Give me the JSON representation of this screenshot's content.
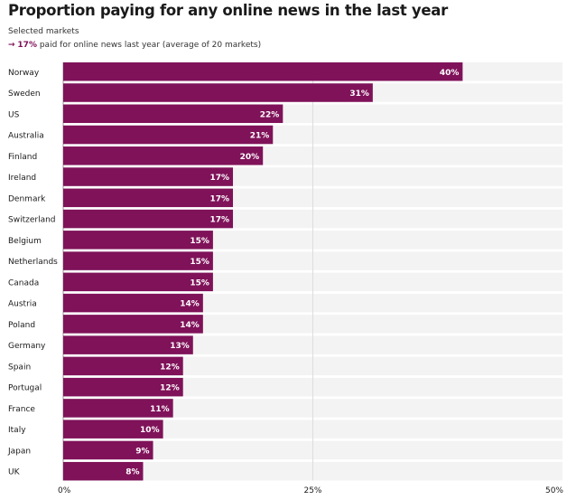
{
  "chart_data": {
    "type": "bar",
    "orientation": "horizontal",
    "title": "Proportion paying for any online news in the last year",
    "subtitle": "Selected markets",
    "annotation": {
      "arrow": "→",
      "value": "17%",
      "text": "paid for online news last year (average of 20 markets)"
    },
    "categories": [
      "Norway",
      "Sweden",
      "US",
      "Australia",
      "Finland",
      "Ireland",
      "Denmark",
      "Switzerland",
      "Belgium",
      "Netherlands",
      "Canada",
      "Austria",
      "Poland",
      "Germany",
      "Spain",
      "Portugal",
      "France",
      "Italy",
      "Japan",
      "UK"
    ],
    "values": [
      40,
      31,
      22,
      21,
      20,
      17,
      17,
      17,
      15,
      15,
      15,
      14,
      14,
      13,
      12,
      12,
      11,
      10,
      9,
      8
    ],
    "unit": "%",
    "xlim": [
      0,
      50
    ],
    "xticks": [
      "0%",
      "25%",
      "50%"
    ],
    "grid": true,
    "colors": {
      "bar": "#7f1259",
      "track": "#f3f3f3",
      "label": "#ffffff"
    }
  }
}
